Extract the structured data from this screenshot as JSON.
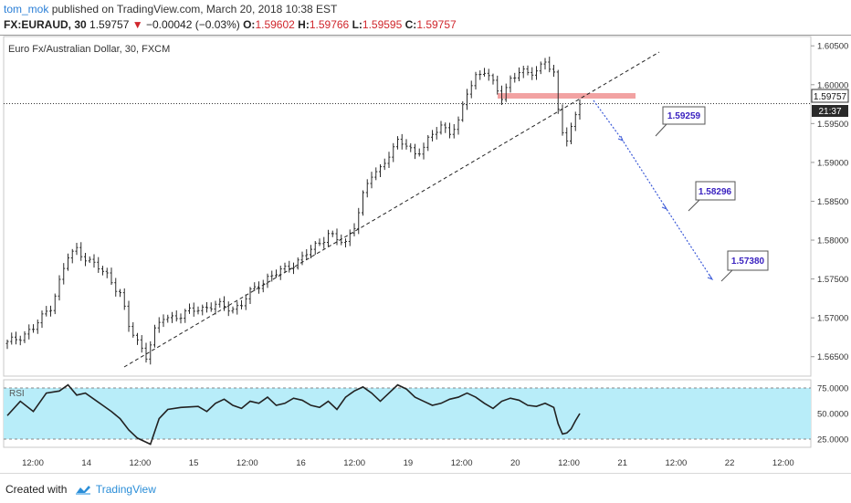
{
  "header": {
    "author": "tom_mok",
    "published": "published on TradingView.com, March 20, 2018 10:38 EST",
    "symbol": "FX:EURAUD, 30",
    "last": "1.59757",
    "down_arrow": "▼",
    "change": "−0.00042 (−0.03%)",
    "o_label": "O:",
    "o_value": "1.59602",
    "h_label": "H:",
    "h_value": "1.59766",
    "l_label": "L:",
    "l_value": "1.59595",
    "c_label": "C:",
    "c_value": "1.59757"
  },
  "chart_data": {
    "type": "bar",
    "title": "Euro Fx/Australian Dollar, 30, FXCM",
    "ylim": [
      1.5625,
      1.6062
    ],
    "price_ticks": [
      "1.60500",
      "1.60000",
      "1.59500",
      "1.59000",
      "1.58500",
      "1.58000",
      "1.57500",
      "1.57000",
      "1.56500"
    ],
    "x_ticks": [
      "12:00",
      "14",
      "12:00",
      "15",
      "12:00",
      "16",
      "12:00",
      "19",
      "12:00",
      "20",
      "12:00",
      "21",
      "12:00",
      "22",
      "12:00"
    ],
    "last_price_label": "1.59757",
    "countdown_label": "21:37",
    "price_path": [
      [
        0,
        1.5667
      ],
      [
        6,
        1.5686
      ],
      [
        10,
        1.5715
      ],
      [
        14,
        1.5778
      ],
      [
        16,
        1.5788
      ],
      [
        20,
        1.5768
      ],
      [
        23,
        1.5755
      ],
      [
        26,
        1.5732
      ],
      [
        28,
        1.5688
      ],
      [
        30,
        1.567
      ],
      [
        32,
        1.5652
      ],
      [
        34,
        1.5682
      ],
      [
        36,
        1.57
      ],
      [
        40,
        1.5703
      ],
      [
        44,
        1.5712
      ],
      [
        48,
        1.5716
      ],
      [
        52,
        1.5712
      ],
      [
        54,
        1.5718
      ],
      [
        56,
        1.5732
      ],
      [
        60,
        1.5752
      ],
      [
        64,
        1.5762
      ],
      [
        68,
        1.5778
      ],
      [
        72,
        1.5796
      ],
      [
        74,
        1.581
      ],
      [
        76,
        1.58
      ],
      [
        78,
        1.5795
      ],
      [
        80,
        1.582
      ],
      [
        82,
        1.5858
      ],
      [
        84,
        1.5882
      ],
      [
        86,
        1.5892
      ],
      [
        88,
        1.5912
      ],
      [
        90,
        1.5925
      ],
      [
        92,
        1.5922
      ],
      [
        94,
        1.5912
      ],
      [
        96,
        1.592
      ],
      [
        98,
        1.5934
      ],
      [
        100,
        1.5948
      ],
      [
        102,
        1.594
      ],
      [
        104,
        1.595
      ],
      [
        106,
        1.599
      ],
      [
        108,
        1.6012
      ],
      [
        110,
        1.6018
      ],
      [
        112,
        1.6
      ],
      [
        114,
        1.5985
      ],
      [
        116,
        1.6008
      ],
      [
        118,
        1.6015
      ],
      [
        120,
        1.6014
      ],
      [
        122,
        1.602
      ],
      [
        124,
        1.603
      ],
      [
        126,
        1.6012
      ],
      [
        127,
        1.5965
      ],
      [
        128,
        1.5942
      ],
      [
        129,
        1.5932
      ],
      [
        130,
        1.5945
      ],
      [
        131,
        1.596
      ],
      [
        132,
        1.5976
      ]
    ],
    "rsi": {
      "label": "RSI",
      "ylim": [
        17,
        83
      ],
      "band": [
        25,
        75
      ],
      "ticks": [
        "75.0000",
        "50.0000",
        "25.0000"
      ],
      "values": [
        [
          0,
          48
        ],
        [
          3,
          62
        ],
        [
          6,
          52
        ],
        [
          9,
          70
        ],
        [
          12,
          72
        ],
        [
          14,
          78
        ],
        [
          16,
          68
        ],
        [
          18,
          70
        ],
        [
          20,
          64
        ],
        [
          22,
          58
        ],
        [
          24,
          52
        ],
        [
          26,
          45
        ],
        [
          28,
          34
        ],
        [
          30,
          26
        ],
        [
          32,
          22
        ],
        [
          33,
          20
        ],
        [
          35,
          45
        ],
        [
          37,
          54
        ],
        [
          40,
          56
        ],
        [
          44,
          57
        ],
        [
          46,
          52
        ],
        [
          48,
          60
        ],
        [
          50,
          64
        ],
        [
          52,
          58
        ],
        [
          54,
          55
        ],
        [
          56,
          62
        ],
        [
          58,
          60
        ],
        [
          60,
          66
        ],
        [
          62,
          58
        ],
        [
          64,
          60
        ],
        [
          66,
          65
        ],
        [
          68,
          63
        ],
        [
          70,
          58
        ],
        [
          72,
          56
        ],
        [
          74,
          62
        ],
        [
          76,
          54
        ],
        [
          78,
          66
        ],
        [
          80,
          72
        ],
        [
          82,
          76
        ],
        [
          84,
          70
        ],
        [
          86,
          62
        ],
        [
          88,
          70
        ],
        [
          90,
          78
        ],
        [
          92,
          74
        ],
        [
          94,
          66
        ],
        [
          96,
          62
        ],
        [
          98,
          58
        ],
        [
          100,
          60
        ],
        [
          102,
          64
        ],
        [
          104,
          66
        ],
        [
          106,
          70
        ],
        [
          108,
          66
        ],
        [
          110,
          60
        ],
        [
          112,
          55
        ],
        [
          114,
          62
        ],
        [
          116,
          65
        ],
        [
          118,
          63
        ],
        [
          120,
          58
        ],
        [
          122,
          57
        ],
        [
          124,
          60
        ],
        [
          126,
          56
        ],
        [
          127,
          40
        ],
        [
          128,
          30
        ],
        [
          129,
          31
        ],
        [
          130,
          35
        ],
        [
          131,
          43
        ],
        [
          132,
          50
        ]
      ]
    },
    "annotations": [
      {
        "label": "1.59259",
        "price": 1.59259
      },
      {
        "label": "1.58296",
        "price": 1.58296
      },
      {
        "label": "1.57380",
        "price": 1.5738
      }
    ]
  },
  "footer": {
    "created_with": "Created with",
    "brand": "TradingView"
  },
  "colors": {
    "price_bars": "#2a2a2a",
    "rsi_band": "#b8edf9",
    "resistance_zone": "#f2a2a2",
    "projection": "#3d5bd8",
    "label_border": "#555555",
    "label_text": "#3a22c0",
    "last_price_bg": "#ffffff",
    "countdown_bg": "#2a2a2a"
  }
}
